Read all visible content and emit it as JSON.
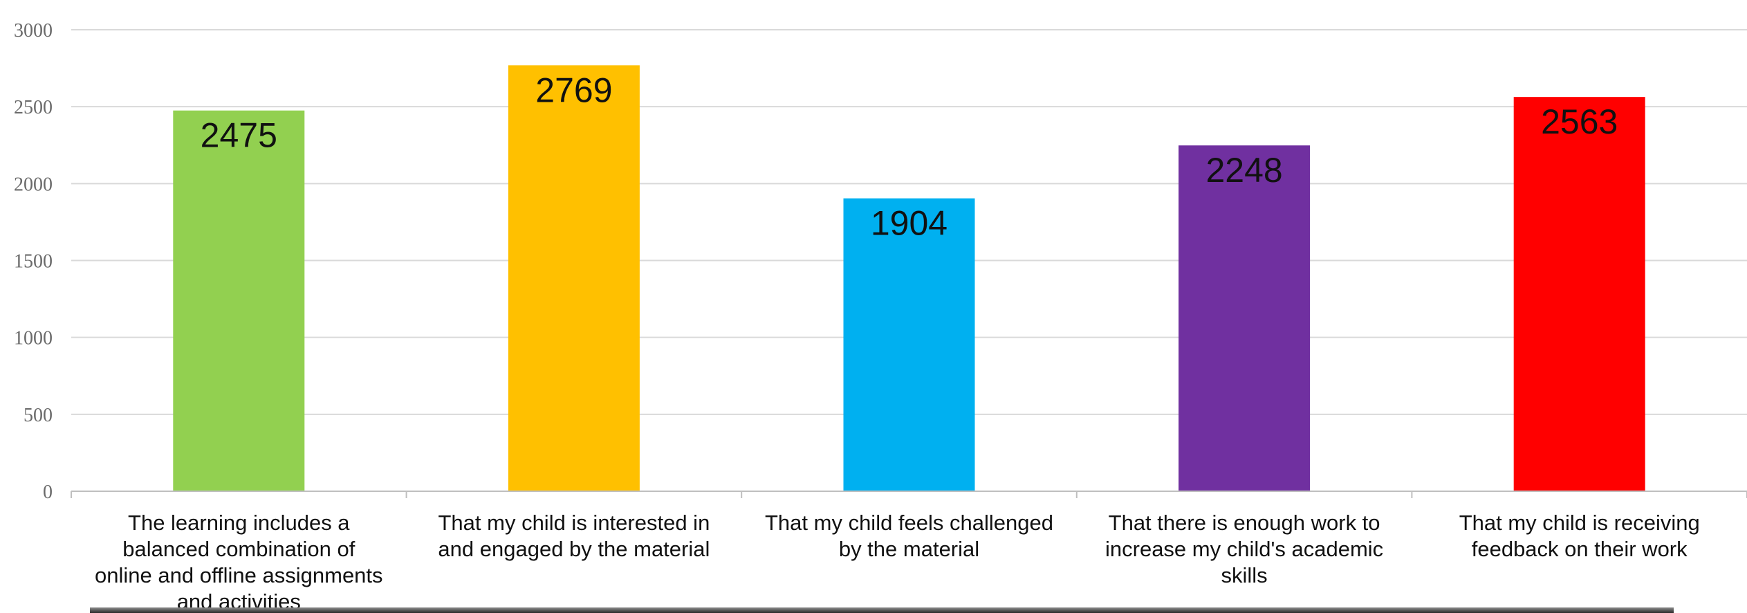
{
  "chart_data": {
    "type": "bar",
    "title": "",
    "xlabel": "",
    "ylabel": "",
    "ylim": [
      0,
      3000
    ],
    "yticks": [
      0,
      500,
      1000,
      1500,
      2000,
      2500,
      3000
    ],
    "grid": true,
    "legend": "none",
    "categories": [
      "The learning includes a balanced combination of online and offline assignments and activities",
      "That my child is interested in and engaged by the material",
      "That my child feels challenged by the material",
      "That there is enough work to increase my child's academic skills",
      "That my child is receiving feedback on their work"
    ],
    "category_lines": [
      [
        "The learning includes a",
        "balanced combination of",
        "online and offline assignments",
        "and activities"
      ],
      [
        "That my child is interested in",
        "and engaged by the material"
      ],
      [
        "That my child feels challenged",
        "by the material"
      ],
      [
        "That there is enough work to",
        "increase my child's academic",
        "skills"
      ],
      [
        "That my child is receiving",
        "feedback on their work"
      ]
    ],
    "values": [
      2475,
      2769,
      1904,
      2248,
      2563
    ],
    "colors": [
      "#92d050",
      "#ffc000",
      "#00b0f0",
      "#7030a0",
      "#ff0000"
    ]
  }
}
